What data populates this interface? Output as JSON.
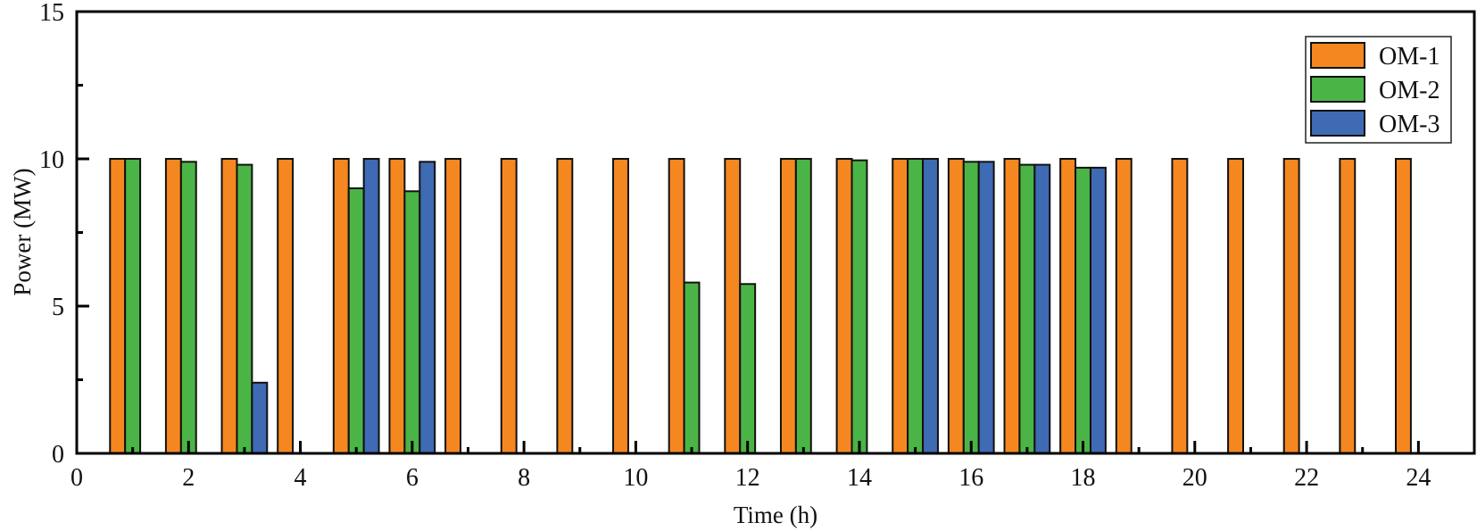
{
  "chart_data": {
    "type": "bar",
    "xlabel": "Time (h)",
    "ylabel": "Power (MW)",
    "xlim": [
      0,
      25
    ],
    "ylim": [
      0,
      15
    ],
    "xticks": [
      0,
      2,
      4,
      6,
      8,
      10,
      12,
      14,
      16,
      18,
      20,
      22,
      24
    ],
    "yticks": [
      0,
      5,
      10,
      15
    ],
    "grid": false,
    "legend_position": "top-right",
    "categories": [
      1,
      2,
      3,
      4,
      5,
      6,
      7,
      8,
      9,
      10,
      11,
      12,
      13,
      14,
      15,
      16,
      17,
      18,
      19,
      20,
      21,
      22,
      23,
      24
    ],
    "series": [
      {
        "name": "OM-1",
        "color": "#F58720",
        "values": [
          10,
          10,
          10,
          10,
          10,
          10,
          10,
          10,
          10,
          10,
          10,
          10,
          10,
          10,
          10,
          10,
          10,
          10,
          10,
          10,
          10,
          10,
          10,
          10
        ]
      },
      {
        "name": "OM-2",
        "color": "#4BB446",
        "values": [
          10,
          9.9,
          9.8,
          null,
          9.0,
          8.9,
          null,
          null,
          null,
          null,
          5.8,
          5.75,
          10,
          9.95,
          10,
          9.9,
          9.8,
          9.7,
          null,
          null,
          null,
          null,
          null,
          null
        ]
      },
      {
        "name": "OM-3",
        "color": "#3F6AB4",
        "values": [
          null,
          null,
          2.4,
          null,
          10,
          9.9,
          null,
          null,
          null,
          null,
          null,
          null,
          null,
          null,
          10,
          9.9,
          9.8,
          9.7,
          null,
          null,
          null,
          null,
          null,
          null
        ]
      }
    ]
  }
}
